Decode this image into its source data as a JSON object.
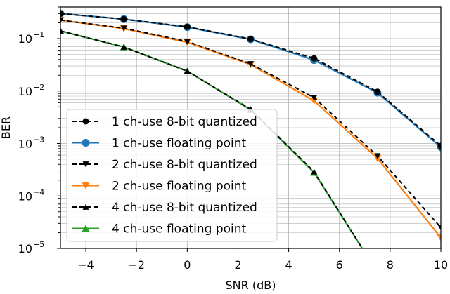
{
  "chart_data": {
    "type": "line",
    "xlabel": "SNR (dB)",
    "ylabel": "BER",
    "xlim": [
      -5,
      10
    ],
    "ylim": [
      1e-05,
      0.4
    ],
    "yscale": "log",
    "grid": true,
    "legend_position": "bottom-left",
    "x_ticks": [
      -4,
      -2,
      0,
      2,
      4,
      6,
      8,
      10
    ],
    "x_tick_labels": [
      "−4",
      "−2",
      "0",
      "2",
      "4",
      "6",
      "8",
      "10"
    ],
    "y_major_ticks": [
      {
        "value": 1e-05,
        "base": "10",
        "exp": "−5"
      },
      {
        "value": 0.0001,
        "base": "10",
        "exp": "−4"
      },
      {
        "value": 0.001,
        "base": "10",
        "exp": "−3"
      },
      {
        "value": 0.01,
        "base": "10",
        "exp": "−2"
      },
      {
        "value": 0.1,
        "base": "10",
        "exp": "−1"
      }
    ],
    "series": [
      {
        "name": "1 ch-use 8-bit quantized",
        "color": "#000000",
        "dashed": true,
        "marker": "circle",
        "x": [
          -5,
          -2.5,
          0,
          2.5,
          5,
          7.5,
          10
        ],
        "y": [
          0.3,
          0.235,
          0.168,
          0.098,
          0.042,
          0.0097,
          0.0009
        ]
      },
      {
        "name": "1 ch-use floating point",
        "color": "#1f77b4",
        "dashed": false,
        "marker": "circle",
        "x": [
          -5,
          -2.5,
          0,
          2.5,
          5,
          7.5,
          10
        ],
        "y": [
          0.3,
          0.235,
          0.165,
          0.097,
          0.039,
          0.0093,
          0.00085
        ]
      },
      {
        "name": "2 ch-use 8-bit quantized",
        "color": "#000000",
        "dashed": true,
        "marker": "triangle-down",
        "x": [
          -5,
          -2.5,
          0,
          2.5,
          5,
          7.5,
          10
        ],
        "y": [
          0.225,
          0.158,
          0.088,
          0.033,
          0.0075,
          0.00058,
          2.5e-05
        ]
      },
      {
        "name": "2 ch-use floating point",
        "color": "#ff7f0e",
        "dashed": false,
        "marker": "triangle-down",
        "x": [
          -5,
          -2.5,
          0,
          2.5,
          5,
          7.5,
          10
        ],
        "y": [
          0.225,
          0.155,
          0.085,
          0.032,
          0.0065,
          0.00052,
          1.6e-05
        ]
      },
      {
        "name": "4 ch-use 8-bit quantized",
        "color": "#000000",
        "dashed": true,
        "marker": "triangle-up",
        "x": [
          -5,
          -2.5,
          0,
          2.5,
          5,
          6.9
        ],
        "y": [
          0.14,
          0.069,
          0.024,
          0.0045,
          0.00029,
          1e-05
        ]
      },
      {
        "name": "4 ch-use floating point",
        "color": "#2ca02c",
        "dashed": false,
        "marker": "triangle-up",
        "x": [
          -5,
          -2.5,
          0,
          2.5,
          5,
          6.9
        ],
        "y": [
          0.14,
          0.069,
          0.024,
          0.0044,
          0.00028,
          1e-05
        ]
      }
    ]
  }
}
